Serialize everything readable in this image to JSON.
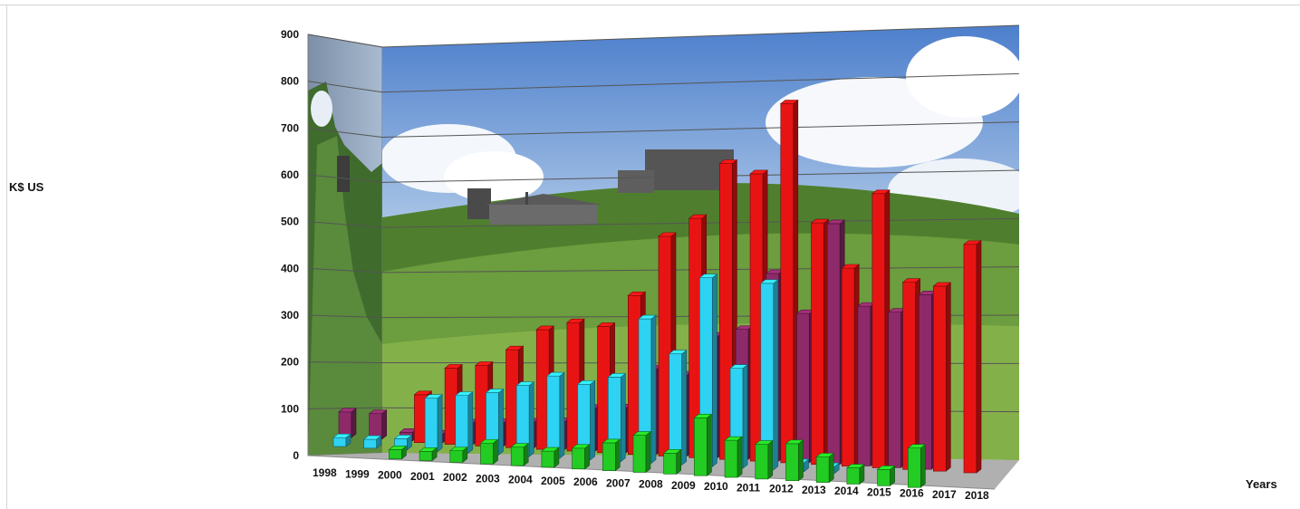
{
  "chart_data": {
    "type": "bar",
    "title": "",
    "xlabel": "Years",
    "ylabel": "K$ US",
    "categories": [
      "1998",
      "1999",
      "2000",
      "2001",
      "2002",
      "2003",
      "2004",
      "2005",
      "2006",
      "2007",
      "2008",
      "2009",
      "2010",
      "2011",
      "2012",
      "2013",
      "2014",
      "2015",
      "2016",
      "2017",
      "2018"
    ],
    "ylim": [
      0,
      900
    ],
    "yticks": [
      0,
      100,
      200,
      300,
      400,
      500,
      600,
      700,
      800,
      900
    ],
    "grid": true,
    "legend": "none",
    "style": "3d-clustered-columns-over-photo-background",
    "series": [
      {
        "color": "#8e2a6a",
        "values": [
          60,
          60,
          20,
          20,
          50,
          55,
          60,
          65,
          100,
          105,
          200,
          190,
          285,
          305,
          440,
          350,
          565,
          375,
          365,
          410,
          0
        ]
      },
      {
        "color": "#2ed2f2",
        "values": [
          20,
          20,
          25,
          120,
          130,
          140,
          160,
          185,
          170,
          190,
          325,
          250,
          425,
          225,
          420,
          20,
          15,
          0,
          0,
          0,
          0
        ]
      },
      {
        "color": "#e81414",
        "values": [
          0,
          0,
          110,
          175,
          185,
          225,
          275,
          295,
          290,
          365,
          505,
          550,
          680,
          660,
          825,
          555,
          455,
          630,
          430,
          425,
          525
        ]
      },
      {
        "color": "#22cc22",
        "values": [
          0,
          0,
          20,
          20,
          25,
          45,
          40,
          35,
          45,
          60,
          80,
          45,
          125,
          80,
          75,
          80,
          55,
          35,
          35,
          85,
          0
        ]
      }
    ]
  }
}
